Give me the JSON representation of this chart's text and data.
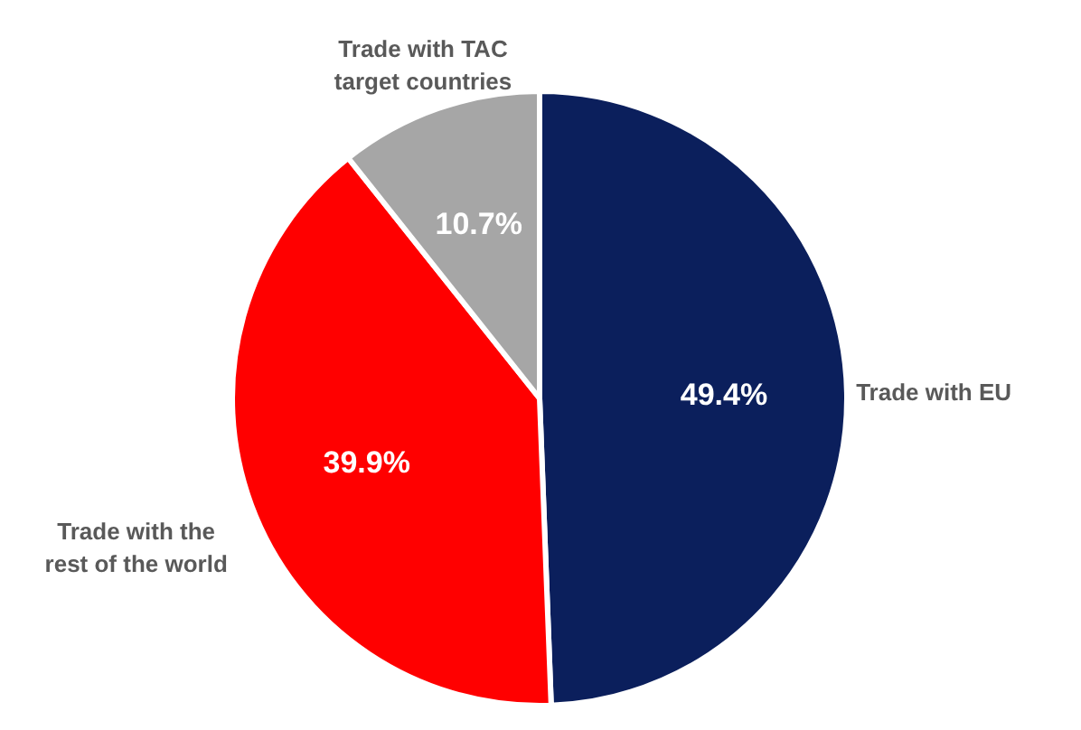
{
  "chart_data": {
    "type": "pie",
    "categories": [
      "Trade with EU",
      "Trade with the\nrest of the world",
      "Trade with TAC\ntarget countries"
    ],
    "values": [
      49.4,
      39.9,
      10.7
    ],
    "colors": [
      "#0b1f5c",
      "#ff0000",
      "#a6a6a6"
    ],
    "value_labels": [
      "49.4%",
      "39.9%",
      "10.7%"
    ]
  }
}
